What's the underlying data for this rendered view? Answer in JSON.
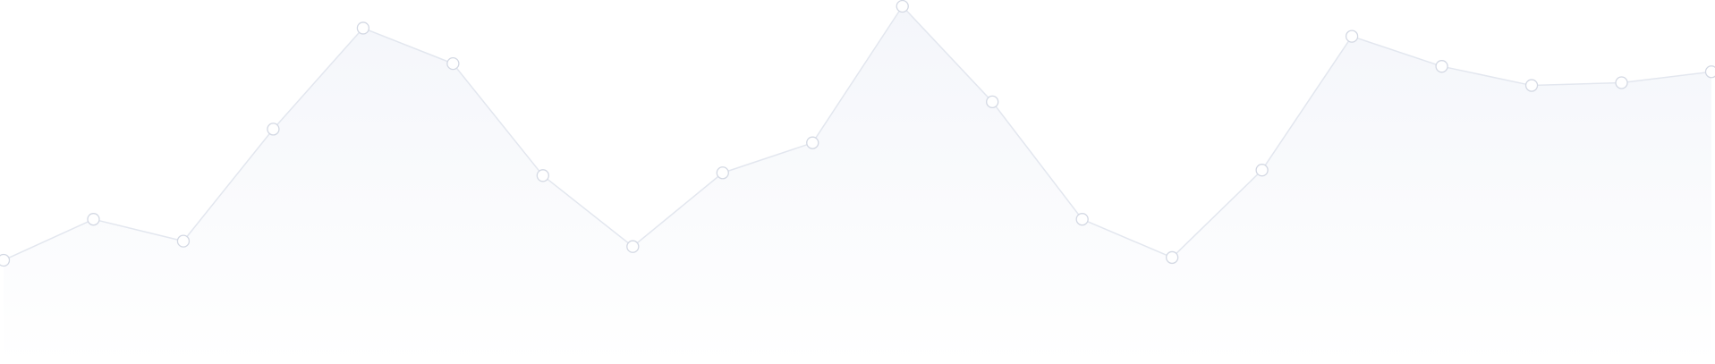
{
  "chart_data": {
    "type": "area",
    "x": [
      1,
      2,
      3,
      4,
      5,
      6,
      7,
      8,
      9,
      10,
      11,
      12,
      13,
      14,
      15,
      16,
      17,
      18,
      19,
      20
    ],
    "series": [
      {
        "values": [
          7,
          22,
          14,
          55,
          92,
          79,
          38,
          12,
          39,
          50,
          100,
          65,
          22,
          8,
          40,
          89,
          78,
          71,
          72,
          76
        ]
      }
    ],
    "ylim": [
      -31,
      100
    ],
    "grid": false,
    "legend": "none",
    "title": "",
    "xlabel": "",
    "ylabel": "",
    "colors": {
      "line": "#e3e7ef",
      "marker_fill": "#ffffff",
      "marker_stroke": "#d4d9e4",
      "area_top": "#f3f5fa",
      "area_bottom": "#ffffff"
    }
  }
}
